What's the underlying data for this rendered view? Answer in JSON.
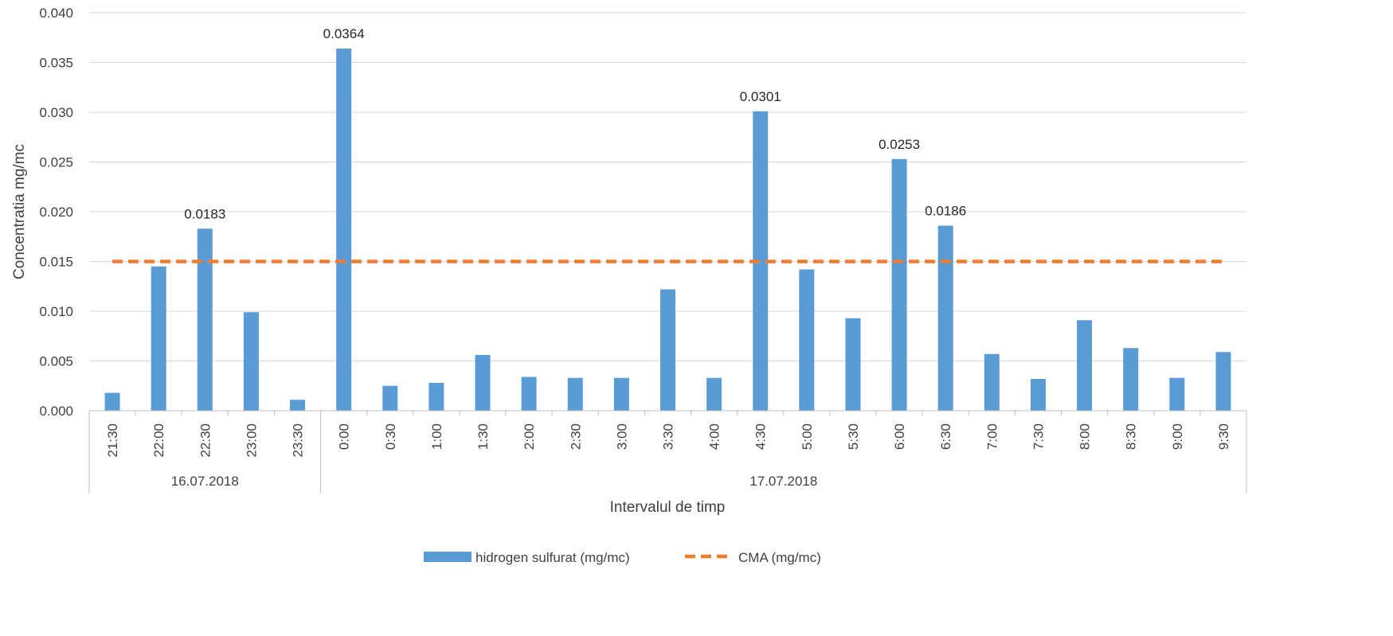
{
  "chart_data": {
    "type": "bar",
    "xlabel": "Intervalul de timp",
    "ylabel": "Concentratia mg/mc",
    "ylim": [
      0,
      0.04
    ],
    "yticks": [
      "0.000",
      "0.005",
      "0.010",
      "0.015",
      "0.020",
      "0.025",
      "0.030",
      "0.035",
      "0.040"
    ],
    "grid": true,
    "legend_position": "bottom",
    "categories": [
      "21:30",
      "22:00",
      "22:30",
      "23:00",
      "23:30",
      "0:00",
      "0:30",
      "1:00",
      "1:30",
      "2:00",
      "2:30",
      "3:00",
      "3:30",
      "4:00",
      "4:30",
      "5:00",
      "5:30",
      "6:00",
      "6:30",
      "7:00",
      "7:30",
      "8:00",
      "8:30",
      "9:00",
      "9:30"
    ],
    "groups": [
      {
        "label": "16.07.2018",
        "count": 5
      },
      {
        "label": "17.07.2018",
        "count": 20
      }
    ],
    "series": [
      {
        "name": "hidrogen sulfurat (mg/mc)",
        "type": "bar",
        "color": "#5B9BD5",
        "values": [
          0.0018,
          0.0145,
          0.0183,
          0.0099,
          0.0011,
          0.0364,
          0.0025,
          0.0028,
          0.0056,
          0.0034,
          0.0033,
          0.0033,
          0.0122,
          0.0033,
          0.0301,
          0.0142,
          0.0093,
          0.0253,
          0.0186,
          0.0057,
          0.0032,
          0.0091,
          0.0063,
          0.0033,
          0.0059
        ]
      },
      {
        "name": "CMA (mg/mc)",
        "type": "line",
        "style": "dashed",
        "color": "#ED7D31",
        "values": [
          0.015,
          0.015,
          0.015,
          0.015,
          0.015,
          0.015,
          0.015,
          0.015,
          0.015,
          0.015,
          0.015,
          0.015,
          0.015,
          0.015,
          0.015,
          0.015,
          0.015,
          0.015,
          0.015,
          0.015,
          0.015,
          0.015,
          0.015,
          0.015,
          0.015
        ]
      }
    ],
    "data_labels": [
      {
        "index": 2,
        "text": "0.0183"
      },
      {
        "index": 5,
        "text": "0.0364"
      },
      {
        "index": 14,
        "text": "0.0301"
      },
      {
        "index": 17,
        "text": "0.0253"
      },
      {
        "index": 18,
        "text": "0.0186"
      }
    ],
    "colors": {
      "grid": "#D9D9D9",
      "axis": "#BFBFBF",
      "text": "#404040"
    }
  }
}
